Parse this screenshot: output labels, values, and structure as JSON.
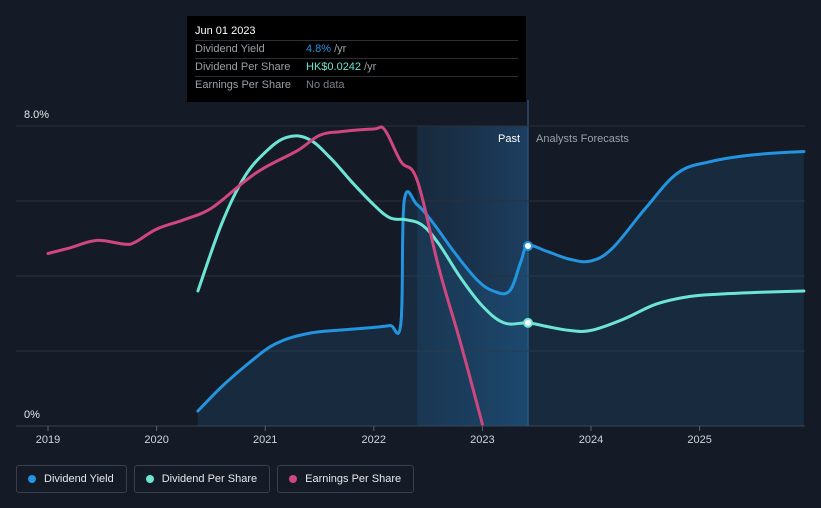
{
  "chart_data": {
    "type": "line",
    "title": "",
    "xlabel": "",
    "ylabel": "",
    "y_axis": {
      "top_label": "8.0%",
      "bottom_label": "0%",
      "ylim": [
        0,
        8.0
      ],
      "grid": true
    },
    "x_axis": {
      "ticks": [
        "2019",
        "2020",
        "2021",
        "2022",
        "2023",
        "2024",
        "2025"
      ],
      "xlim": [
        2019.0,
        2025.96
      ]
    },
    "regions": {
      "past_label": "Past",
      "forecast_label": "Analysts Forecasts",
      "past_shade_start": 2022.4,
      "now": 2023.42
    },
    "series": [
      {
        "name": "Dividend Yield",
        "color": "#2394df",
        "fill": true,
        "points": [
          [
            2020.38,
            0.4
          ],
          [
            2020.6,
            1.05
          ],
          [
            2020.85,
            1.68
          ],
          [
            2021.1,
            2.2
          ],
          [
            2021.4,
            2.47
          ],
          [
            2021.7,
            2.56
          ],
          [
            2022.0,
            2.63
          ],
          [
            2022.15,
            2.68
          ],
          [
            2022.25,
            2.75
          ],
          [
            2022.28,
            6.0
          ],
          [
            2022.4,
            5.9
          ],
          [
            2022.55,
            5.4
          ],
          [
            2022.75,
            4.6
          ],
          [
            2022.95,
            3.9
          ],
          [
            2023.1,
            3.6
          ],
          [
            2023.25,
            3.6
          ],
          [
            2023.35,
            4.35
          ],
          [
            2023.42,
            4.8
          ],
          [
            2023.6,
            4.65
          ],
          [
            2023.8,
            4.45
          ],
          [
            2024.0,
            4.4
          ],
          [
            2024.2,
            4.75
          ],
          [
            2024.5,
            5.8
          ],
          [
            2024.8,
            6.75
          ],
          [
            2025.1,
            7.05
          ],
          [
            2025.4,
            7.2
          ],
          [
            2025.7,
            7.28
          ],
          [
            2025.96,
            7.32
          ]
        ]
      },
      {
        "name": "Dividend Per Share",
        "color": "#6de5d5",
        "fill": false,
        "points": [
          [
            2020.38,
            3.6
          ],
          [
            2020.6,
            5.4
          ],
          [
            2020.8,
            6.6
          ],
          [
            2021.0,
            7.3
          ],
          [
            2021.2,
            7.7
          ],
          [
            2021.4,
            7.65
          ],
          [
            2021.6,
            7.15
          ],
          [
            2021.8,
            6.5
          ],
          [
            2022.0,
            5.9
          ],
          [
            2022.15,
            5.55
          ],
          [
            2022.3,
            5.5
          ],
          [
            2022.45,
            5.35
          ],
          [
            2022.6,
            4.85
          ],
          [
            2022.8,
            3.95
          ],
          [
            2023.0,
            3.2
          ],
          [
            2023.2,
            2.75
          ],
          [
            2023.42,
            2.75
          ],
          [
            2023.6,
            2.65
          ],
          [
            2023.8,
            2.55
          ],
          [
            2024.0,
            2.55
          ],
          [
            2024.3,
            2.85
          ],
          [
            2024.6,
            3.25
          ],
          [
            2024.9,
            3.45
          ],
          [
            2025.2,
            3.52
          ],
          [
            2025.6,
            3.57
          ],
          [
            2025.96,
            3.6
          ]
        ]
      },
      {
        "name": "Earnings Per Share",
        "color": "#d0467f",
        "fill": false,
        "points": [
          [
            2019.0,
            4.6
          ],
          [
            2019.2,
            4.75
          ],
          [
            2019.45,
            4.95
          ],
          [
            2019.7,
            4.85
          ],
          [
            2019.8,
            4.9
          ],
          [
            2020.0,
            5.25
          ],
          [
            2020.25,
            5.5
          ],
          [
            2020.5,
            5.8
          ],
          [
            2020.8,
            6.5
          ],
          [
            2021.0,
            6.9
          ],
          [
            2021.3,
            7.35
          ],
          [
            2021.5,
            7.75
          ],
          [
            2021.7,
            7.85
          ],
          [
            2022.0,
            7.92
          ],
          [
            2022.1,
            7.9
          ],
          [
            2022.25,
            7.05
          ],
          [
            2022.4,
            6.55
          ],
          [
            2022.6,
            4.2
          ],
          [
            2022.8,
            2.2
          ],
          [
            2023.0,
            0.05
          ]
        ]
      }
    ],
    "markers": [
      {
        "series": "Dividend Yield",
        "x": 2023.42,
        "y": 4.8
      },
      {
        "series": "Dividend Per Share",
        "x": 2023.42,
        "y": 2.75
      }
    ]
  },
  "tooltip": {
    "date": "Jun 01 2023",
    "rows": [
      {
        "label": "Dividend Yield",
        "value": "4.8%",
        "unit": " /yr",
        "color": "#2394df"
      },
      {
        "label": "Dividend Per Share",
        "value": "HK$0.0242",
        "unit": " /yr",
        "color": "#6de5d5"
      },
      {
        "label": "Earnings Per Share",
        "value": "No data",
        "unit": "",
        "color": "#7a8089"
      }
    ]
  },
  "legend": [
    {
      "label": "Dividend Yield",
      "color": "#2394df"
    },
    {
      "label": "Dividend Per Share",
      "color": "#6de5d5"
    },
    {
      "label": "Earnings Per Share",
      "color": "#d0467f"
    }
  ]
}
